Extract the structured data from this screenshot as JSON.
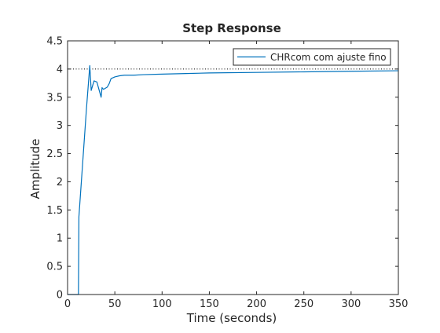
{
  "chart_data": {
    "type": "line",
    "title": "Step Response",
    "xlabel": "Time (seconds)",
    "ylabel": "Amplitude",
    "xlim": [
      0,
      350
    ],
    "ylim": [
      0,
      4.5
    ],
    "xticks": [
      0,
      50,
      100,
      150,
      200,
      250,
      300,
      350
    ],
    "yticks": [
      0,
      0.5,
      1,
      1.5,
      2,
      2.5,
      3,
      3.5,
      4,
      4.5
    ],
    "grid": false,
    "legend_position": "top-right",
    "reference_line": {
      "y": 4,
      "style": "dotted",
      "color": "#000000"
    },
    "series": [
      {
        "name": "CHRcom com ajuste fino",
        "color": "#0072BD",
        "x": [
          0,
          11.5,
          12,
          20,
          23.5,
          25,
          28,
          31,
          33.5,
          35.5,
          36.5,
          38,
          42,
          44,
          46,
          50,
          55,
          60,
          70,
          80,
          100,
          125,
          150,
          200,
          250,
          300,
          350
        ],
        "y": [
          0,
          0,
          1.38,
          3.3,
          4.06,
          3.62,
          3.79,
          3.77,
          3.62,
          3.5,
          3.67,
          3.64,
          3.68,
          3.74,
          3.83,
          3.86,
          3.88,
          3.89,
          3.89,
          3.9,
          3.91,
          3.92,
          3.93,
          3.94,
          3.95,
          3.96,
          3.97
        ]
      }
    ]
  }
}
